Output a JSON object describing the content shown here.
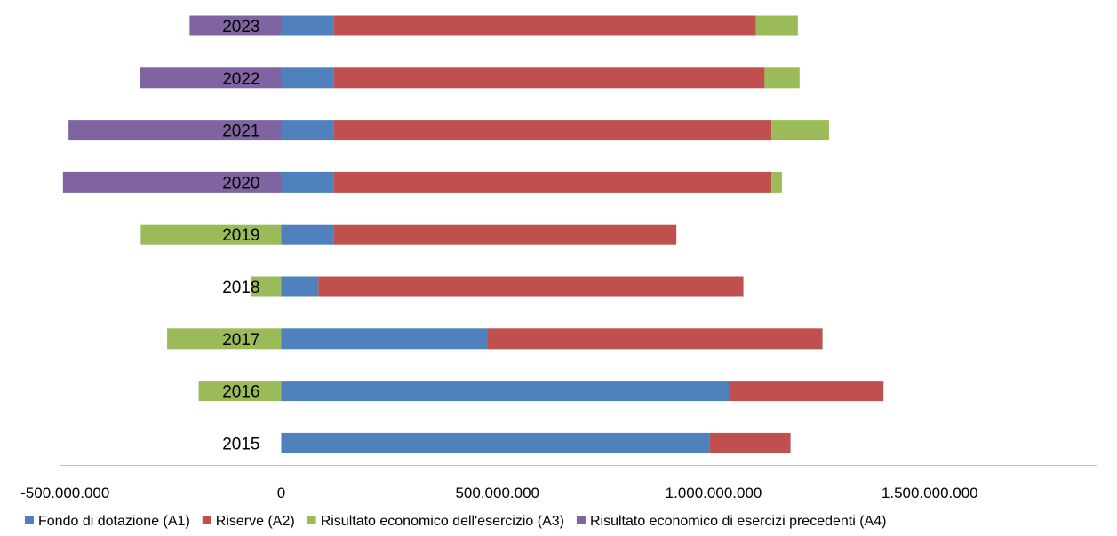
{
  "chart_data": {
    "type": "bar",
    "orientation": "horizontal",
    "stacked": true,
    "categories": [
      "2015",
      "2016",
      "2017",
      "2018",
      "2019",
      "2020",
      "2021",
      "2022",
      "2023"
    ],
    "series": [
      {
        "name": "Fondo di dotazione (A1)",
        "color": "#4f81bd",
        "values": [
          990000000,
          1036000000,
          476000000,
          86000000,
          121000000,
          121000000,
          121000000,
          121000000,
          121000000
        ]
      },
      {
        "name": "Riserve (A2)",
        "color": "#c0504d",
        "values": [
          188000000,
          357000000,
          776000000,
          983000000,
          793000000,
          1013000000,
          1013000000,
          997000000,
          977000000
        ]
      },
      {
        "name": "Risultato economico dell'esercizio (A3)",
        "color": "#9bbb59",
        "values": [
          0,
          -191000000,
          -264000000,
          -71000000,
          -325000000,
          24000000,
          133000000,
          81000000,
          97000000
        ]
      },
      {
        "name": "Risultato economico di esercizi precedenti (A4)",
        "color": "#8064a2",
        "values": [
          0,
          0,
          0,
          0,
          0,
          -505000000,
          -492000000,
          -327000000,
          -212000000
        ]
      }
    ],
    "xlim": [
      -630000000,
      1840000000
    ],
    "x_ticks": [
      {
        "value": -500000000,
        "label": "-500.000.000"
      },
      {
        "value": 0,
        "label": "0"
      },
      {
        "value": 500000000,
        "label": "500.000.000"
      },
      {
        "value": 1000000000,
        "label": "1.000.000.000"
      },
      {
        "value": 1500000000,
        "label": "1.500.000.000"
      }
    ],
    "grid": false,
    "legend_position": "bottom",
    "title": "",
    "xlabel": "",
    "ylabel": ""
  }
}
